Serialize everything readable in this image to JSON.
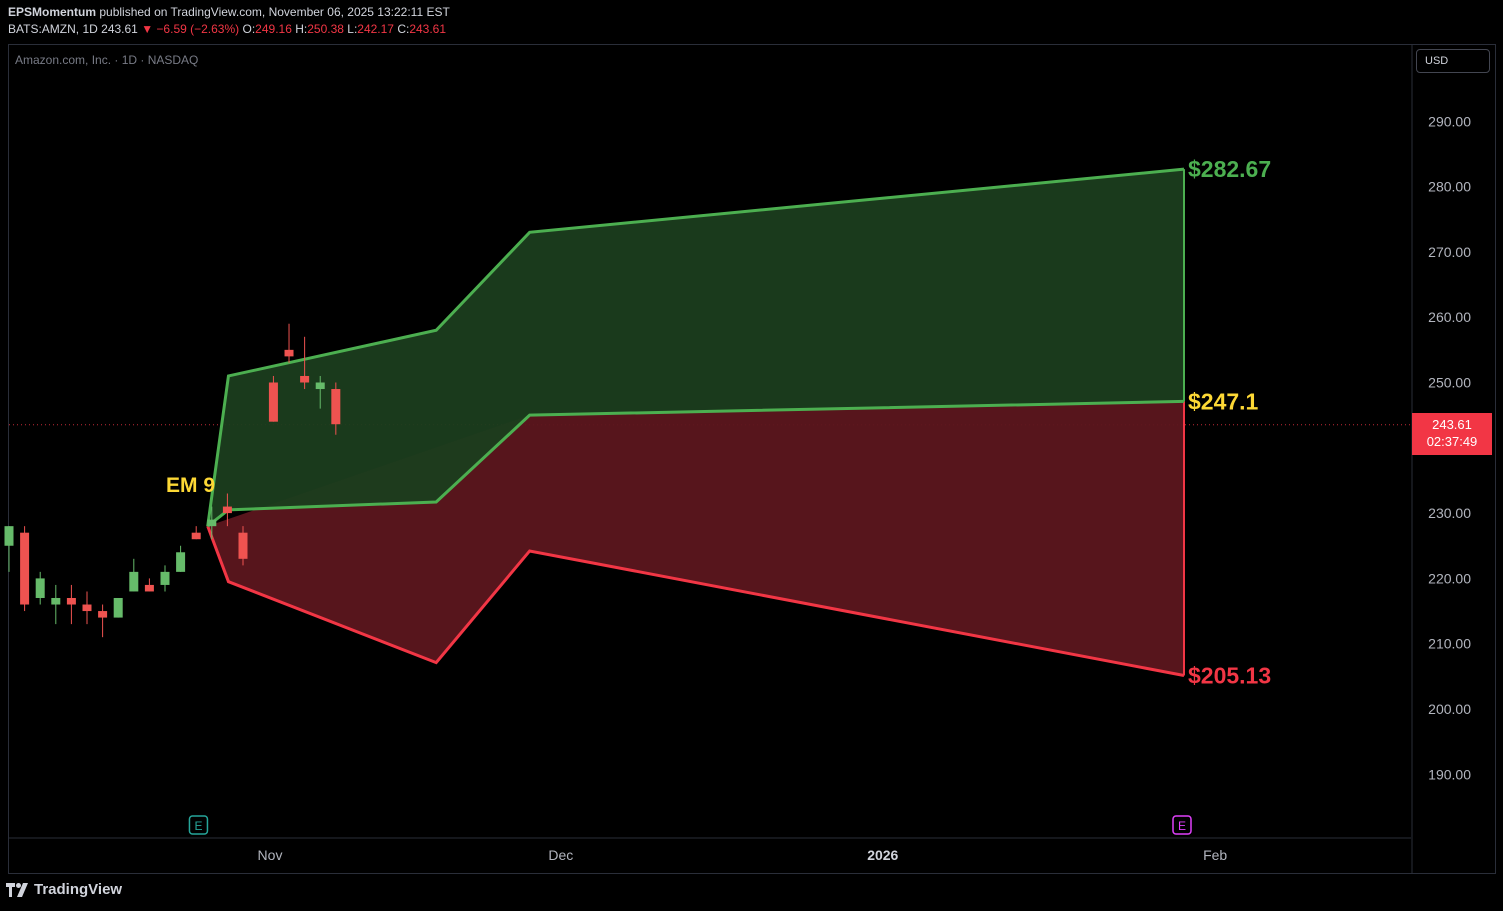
{
  "header": {
    "publisher": "EPSMomentum",
    "published_text": "published on TradingView.com, November 06, 2025 13:22:11 EST",
    "symbol_line": "BATS:AMZN, 1D",
    "last": "243.61",
    "change_arrow": "▼",
    "change": "−6.59 (−2.63%)",
    "o_label": "O:",
    "o_value": "249.16",
    "h_label": "H:",
    "h_value": "250.38",
    "l_label": "L:",
    "l_value": "242.17",
    "c_label": "C:",
    "c_value": "243.61"
  },
  "legend": "Amazon.com, Inc. · 1D · NASDAQ",
  "currency_button": "USD",
  "price_tag": {
    "price": "243.61",
    "countdown": "02:37:49"
  },
  "footer": {
    "brand": "TradingView"
  },
  "colors": {
    "up": "#66bb6a",
    "down": "#ef5350",
    "green_band_line": "#4caf50",
    "green_band_fill": "#1b3d1e",
    "red_band_line": "#f23645",
    "red_band_fill": "#5c161e",
    "label_yellow": "#fdd835"
  },
  "chart_data": {
    "type": "candlestick",
    "x_axis_labels": [
      {
        "label": "Nov",
        "date": "2025-11-03",
        "bold": false
      },
      {
        "label": "Dec",
        "date": "2025-12-01",
        "bold": false
      },
      {
        "label": "2026",
        "date": "2026-01-01",
        "bold": true
      },
      {
        "label": "Feb",
        "date": "2026-02-02",
        "bold": false
      }
    ],
    "y_ticks": [
      "290.00",
      "280.00",
      "270.00",
      "260.00",
      "250.00",
      "230.00",
      "220.00",
      "210.00",
      "200.00",
      "190.00"
    ],
    "ylim": [
      182,
      300
    ],
    "candles": [
      {
        "date": "2025-10-06",
        "o": 225,
        "h": 228,
        "l": 221,
        "c": 228
      },
      {
        "date": "2025-10-07",
        "o": 227,
        "h": 228,
        "l": 215,
        "c": 216
      },
      {
        "date": "2025-10-08",
        "o": 217,
        "h": 221,
        "l": 216,
        "c": 220
      },
      {
        "date": "2025-10-09",
        "o": 216,
        "h": 219,
        "l": 213,
        "c": 217
      },
      {
        "date": "2025-10-10",
        "o": 217,
        "h": 219,
        "l": 213,
        "c": 216
      },
      {
        "date": "2025-10-13",
        "o": 216,
        "h": 218,
        "l": 213,
        "c": 215
      },
      {
        "date": "2025-10-14",
        "o": 215,
        "h": 216,
        "l": 211,
        "c": 214
      },
      {
        "date": "2025-10-15",
        "o": 214,
        "h": 217,
        "l": 214,
        "c": 217
      },
      {
        "date": "2025-10-16",
        "o": 218,
        "h": 223,
        "l": 218,
        "c": 221
      },
      {
        "date": "2025-10-17",
        "o": 219,
        "h": 220,
        "l": 218,
        "c": 218
      },
      {
        "date": "2025-10-20",
        "o": 219,
        "h": 222,
        "l": 218,
        "c": 221
      },
      {
        "date": "2025-10-21",
        "o": 221,
        "h": 225,
        "l": 221,
        "c": 224
      },
      {
        "date": "2025-10-22",
        "o": 227,
        "h": 228,
        "l": 226,
        "c": 226
      },
      {
        "date": "2025-10-23",
        "o": 228,
        "h": 231,
        "l": 226,
        "c": 229
      },
      {
        "date": "2025-10-24",
        "o": 231,
        "h": 233,
        "l": 228,
        "c": 230
      },
      {
        "date": "2025-10-27",
        "o": 227,
        "h": 228,
        "l": 222,
        "c": 223
      },
      {
        "date": "2025-10-30",
        "o": 250,
        "h": 251,
        "l": 244,
        "c": 244
      },
      {
        "date": "2025-10-31",
        "o": 255,
        "h": 259,
        "l": 253,
        "c": 254
      },
      {
        "date": "2025-11-03",
        "o": 251,
        "h": 257,
        "l": 249,
        "c": 250
      },
      {
        "date": "2025-11-04",
        "o": 249,
        "h": 251,
        "l": 246,
        "c": 250
      },
      {
        "date": "2025-11-05",
        "o": 249,
        "h": 250,
        "l": 242,
        "c": 243.61
      }
    ],
    "last_price": 243.61,
    "expected_move": {
      "label": "EM 9",
      "green_band_upper": [
        {
          "date": "2025-10-28",
          "v": 228
        },
        {
          "date": "2025-10-30",
          "v": 251
        },
        {
          "date": "2025-11-19",
          "v": 258
        },
        {
          "date": "2025-11-28",
          "v": 273
        },
        {
          "date": "2026-01-30",
          "v": 282.67
        }
      ],
      "green_band_lower": [
        {
          "date": "2025-10-28",
          "v": 228
        },
        {
          "date": "2025-10-30",
          "v": 230.5
        },
        {
          "date": "2025-11-19",
          "v": 231.7
        },
        {
          "date": "2025-11-28",
          "v": 245
        },
        {
          "date": "2026-01-30",
          "v": 247.1
        }
      ],
      "red_band_upper": [
        {
          "date": "2025-10-28",
          "v": 228
        },
        {
          "date": "2025-11-28",
          "v": 245
        },
        {
          "date": "2026-01-30",
          "v": 247.1
        }
      ],
      "red_band_lower": [
        {
          "date": "2025-10-28",
          "v": 228
        },
        {
          "date": "2025-10-30",
          "v": 219.5
        },
        {
          "date": "2025-11-19",
          "v": 207.1
        },
        {
          "date": "2025-11-28",
          "v": 224.2
        },
        {
          "date": "2026-01-30",
          "v": 205.13
        }
      ],
      "labels": [
        {
          "text": "$282.67",
          "color": "#4caf50"
        },
        {
          "text": "$247.1",
          "color": "#fdd835"
        },
        {
          "text": "$205.13",
          "color": "#f23645"
        }
      ]
    },
    "earnings_markers": [
      {
        "date": "2025-10-30",
        "letter": "E",
        "color": "#26a69a"
      },
      {
        "date": "2026-01-30",
        "letter": "E",
        "color": "#e040fb"
      }
    ]
  }
}
